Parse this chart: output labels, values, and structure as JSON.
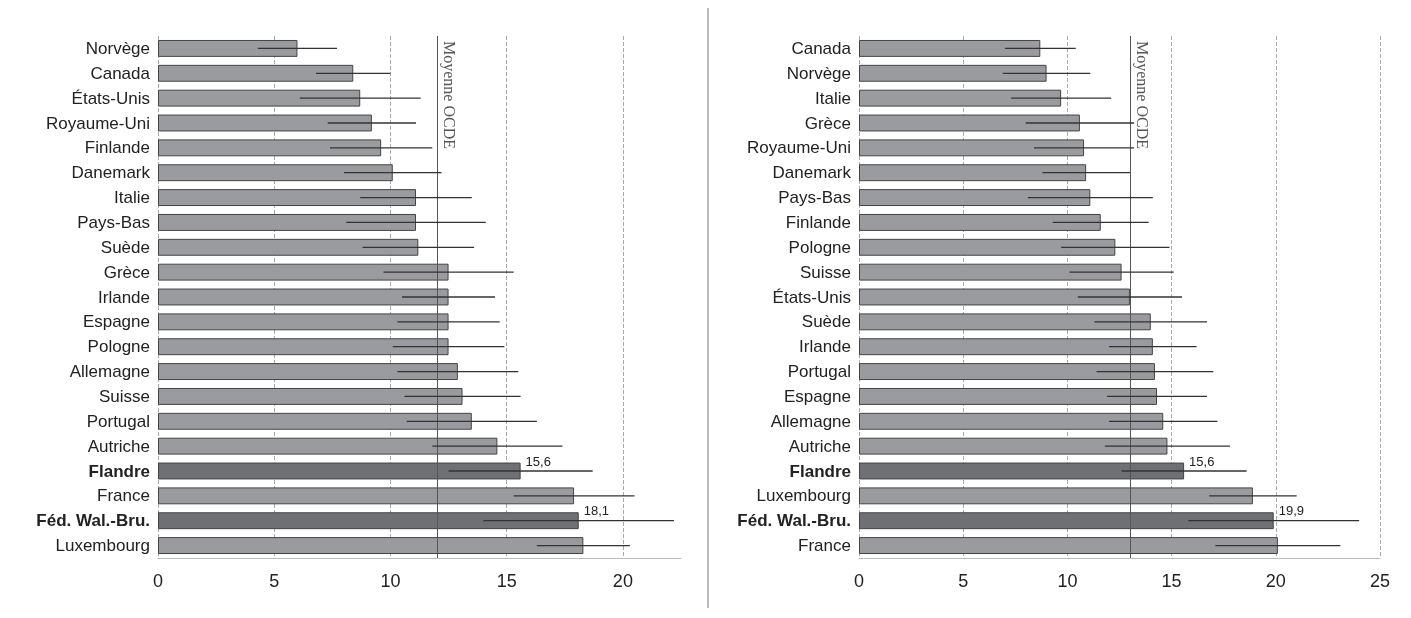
{
  "chart_data": [
    {
      "type": "bar",
      "orientation": "horizontal",
      "categories": [
        "Norvège",
        "Canada",
        "États-Unis",
        "Royaume-Uni",
        "Finlande",
        "Danemark",
        "Italie",
        "Pays-Bas",
        "Suède",
        "Grèce",
        "Irlande",
        "Espagne",
        "Pologne",
        "Allemagne",
        "Suisse",
        "Portugal",
        "Autriche",
        "Flandre",
        "France",
        "Féd. Wal.-Bru.",
        "Luxembourg"
      ],
      "values": [
        6.0,
        8.4,
        8.7,
        9.2,
        9.6,
        10.1,
        11.1,
        11.1,
        11.2,
        12.5,
        12.5,
        12.5,
        12.5,
        12.9,
        13.1,
        13.5,
        14.6,
        15.6,
        17.9,
        18.1,
        18.3
      ],
      "errors": [
        1.7,
        1.6,
        2.6,
        1.9,
        2.2,
        2.1,
        2.4,
        3.0,
        2.4,
        2.8,
        2.0,
        2.2,
        2.4,
        2.6,
        2.5,
        2.8,
        2.8,
        3.1,
        2.6,
        4.1,
        2.0
      ],
      "colors": [
        "#9a9b9f",
        "#9a9b9f",
        "#9a9b9f",
        "#9a9b9f",
        "#9a9b9f",
        "#9a9b9f",
        "#9a9b9f",
        "#9a9b9f",
        "#9a9b9f",
        "#9a9b9f",
        "#9a9b9f",
        "#9a9b9f",
        "#9a9b9f",
        "#9a9b9f",
        "#9a9b9f",
        "#9a9b9f",
        "#9a9b9f",
        "#6f7074",
        "#9a9b9f",
        "#6f7074",
        "#9a9b9f"
      ],
      "value_labels": [
        null,
        null,
        null,
        null,
        null,
        null,
        null,
        null,
        null,
        null,
        null,
        null,
        null,
        null,
        null,
        null,
        null,
        "15,6",
        null,
        "18,1",
        null
      ],
      "xlim": [
        0,
        22.5
      ],
      "xticks": [
        0,
        5,
        10,
        15,
        20
      ],
      "grid": "x",
      "ref_lines": [
        {
          "axis": "x",
          "value": 12,
          "label": "Moyenne OCDE",
          "color": "#555555"
        }
      ]
    },
    {
      "type": "bar",
      "orientation": "horizontal",
      "categories": [
        "Canada",
        "Norvège",
        "Italie",
        "Grèce",
        "Royaume-Uni",
        "Danemark",
        "Pays-Bas",
        "Finlande",
        "Pologne",
        "Suisse",
        "États-Unis",
        "Suède",
        "Irlande",
        "Portugal",
        "Espagne",
        "Allemagne",
        "Autriche",
        "Flandre",
        "Luxembourg",
        "Féd. Wal.-Bru.",
        "France"
      ],
      "values": [
        8.7,
        9.0,
        9.7,
        10.6,
        10.8,
        10.9,
        11.1,
        11.6,
        12.3,
        12.6,
        13.0,
        14.0,
        14.1,
        14.2,
        14.3,
        14.6,
        14.8,
        15.6,
        18.9,
        19.9,
        20.1
      ],
      "errors": [
        1.7,
        2.1,
        2.4,
        2.6,
        2.4,
        2.1,
        3.0,
        2.3,
        2.6,
        2.5,
        2.5,
        2.7,
        2.1,
        2.8,
        2.4,
        2.6,
        3.0,
        3.0,
        2.1,
        4.1,
        3.0
      ],
      "colors": [
        "#9a9b9f",
        "#9a9b9f",
        "#9a9b9f",
        "#9a9b9f",
        "#9a9b9f",
        "#9a9b9f",
        "#9a9b9f",
        "#9a9b9f",
        "#9a9b9f",
        "#9a9b9f",
        "#9a9b9f",
        "#9a9b9f",
        "#9a9b9f",
        "#9a9b9f",
        "#9a9b9f",
        "#9a9b9f",
        "#9a9b9f",
        "#6f7074",
        "#9a9b9f",
        "#6f7074",
        "#9a9b9f"
      ],
      "value_labels": [
        null,
        null,
        null,
        null,
        null,
        null,
        null,
        null,
        null,
        null,
        null,
        null,
        null,
        null,
        null,
        null,
        null,
        "15,6",
        null,
        "19,9",
        null
      ],
      "xlim": [
        0,
        25
      ],
      "xticks": [
        0,
        5,
        10,
        15,
        20,
        25
      ],
      "grid": "x",
      "ref_lines": [
        {
          "axis": "x",
          "value": 13,
          "label": "Moyenne OCDE",
          "color": "#555555"
        }
      ]
    }
  ]
}
